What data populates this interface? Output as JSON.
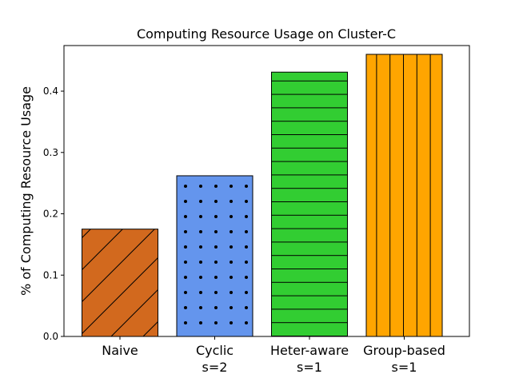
{
  "chart_data": {
    "type": "bar",
    "title": "Computing Resource Usage on Cluster-C",
    "xlabel": "",
    "ylabel": "% of Computing Resource Usage",
    "ylim": [
      0,
      0.46
    ],
    "yticks": [
      "0.0",
      "0.1",
      "0.2",
      "0.3",
      "0.4"
    ],
    "grid": false,
    "categories": [
      {
        "line1": "Naive",
        "line2": ""
      },
      {
        "line1": "Cyclic",
        "line2": "s=2"
      },
      {
        "line1": "Heter-aware",
        "line2": "s=1"
      },
      {
        "line1": "Group-based",
        "line2": "s=1"
      }
    ],
    "values": [
      0.175,
      0.262,
      0.431,
      0.46
    ],
    "colors": [
      "#D2691E",
      "#6495ED",
      "#32CD32",
      "#FFA500"
    ],
    "hatches": [
      "diagonal",
      "dots",
      "horizontal",
      "vertical"
    ]
  }
}
